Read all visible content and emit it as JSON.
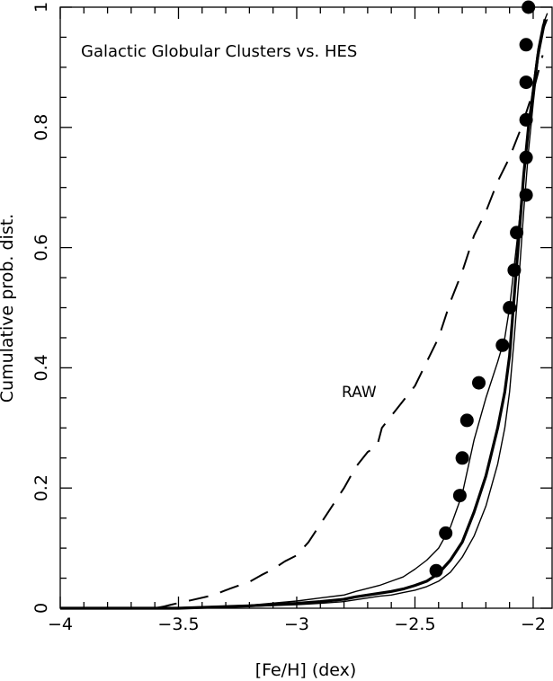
{
  "chart_data": {
    "type": "line",
    "title": "Galactic Globular Clusters vs. HES",
    "xlabel": "[Fe/H] (dex)",
    "ylabel": "Cumulative prob. dist.",
    "xlim": [
      -4.0,
      -1.92
    ],
    "ylim": [
      0.0,
      1.0
    ],
    "x_ticks": [
      -4,
      -3.5,
      -3,
      -2.5,
      -2
    ],
    "x_tick_labels": [
      "−4",
      "−3.5",
      "−3",
      "−2.5",
      "−2"
    ],
    "y_ticks": [
      0,
      0.2,
      0.4,
      0.6,
      0.8,
      1
    ],
    "y_tick_labels": [
      "0",
      "0.2",
      "0.4",
      "0.6",
      "0.8",
      "1"
    ],
    "grid": false,
    "annotations": [
      {
        "text": "RAW",
        "x": -2.78,
        "y": 0.36
      }
    ],
    "series": [
      {
        "style": "dashed",
        "stroke": "#000000",
        "x": [
          -4.0,
          -3.8,
          -3.6,
          -3.56,
          -3.53,
          -3.45,
          -3.35,
          -3.3,
          -3.25,
          -3.2,
          -3.15,
          -3.1,
          -3.05,
          -3.0,
          -2.95,
          -2.9,
          -2.85,
          -2.8,
          -2.75,
          -2.7,
          -2.66,
          -2.64,
          -2.6,
          -2.55,
          -2.5,
          -2.45,
          -2.4,
          -2.35,
          -2.3,
          -2.25,
          -2.2,
          -2.15,
          -2.1,
          -2.05,
          -2.0,
          -1.96
        ],
        "y": [
          0.0,
          0.0,
          0.0,
          0.003,
          0.006,
          0.013,
          0.022,
          0.03,
          0.037,
          0.044,
          0.055,
          0.065,
          0.078,
          0.088,
          0.11,
          0.14,
          0.17,
          0.2,
          0.235,
          0.26,
          0.27,
          0.3,
          0.32,
          0.345,
          0.37,
          0.41,
          0.45,
          0.51,
          0.56,
          0.62,
          0.66,
          0.71,
          0.75,
          0.8,
          0.86,
          0.92
        ]
      },
      {
        "style": "thick",
        "stroke": "#000000",
        "x": [
          -4.0,
          -3.5,
          -3.2,
          -3.0,
          -2.9,
          -2.8,
          -2.75,
          -2.7,
          -2.65,
          -2.6,
          -2.55,
          -2.5,
          -2.45,
          -2.4,
          -2.35,
          -2.3,
          -2.25,
          -2.2,
          -2.15,
          -2.12,
          -2.1,
          -2.08,
          -2.06,
          -2.04,
          -2.02,
          -2.0,
          -1.98,
          -1.96,
          -1.95
        ],
        "y": [
          0.0,
          0.0,
          0.004,
          0.008,
          0.011,
          0.015,
          0.019,
          0.022,
          0.025,
          0.028,
          0.032,
          0.038,
          0.045,
          0.058,
          0.08,
          0.11,
          0.16,
          0.22,
          0.3,
          0.36,
          0.42,
          0.52,
          0.62,
          0.72,
          0.8,
          0.86,
          0.92,
          0.96,
          0.98
        ]
      },
      {
        "style": "thin",
        "stroke": "#000000",
        "x": [
          -4.0,
          -3.5,
          -3.2,
          -3.0,
          -2.9,
          -2.8,
          -2.75,
          -2.7,
          -2.65,
          -2.6,
          -2.55,
          -2.5,
          -2.45,
          -2.4,
          -2.35,
          -2.3,
          -2.25,
          -2.2,
          -2.15,
          -2.12,
          -2.1,
          -2.08,
          -2.06,
          -2.04,
          -2.02,
          -2.0,
          -1.98,
          -1.96,
          -1.94
        ],
        "y": [
          0.0,
          0.001,
          0.005,
          0.012,
          0.017,
          0.022,
          0.028,
          0.033,
          0.038,
          0.045,
          0.052,
          0.065,
          0.08,
          0.1,
          0.135,
          0.19,
          0.28,
          0.35,
          0.41,
          0.45,
          0.5,
          0.57,
          0.64,
          0.72,
          0.8,
          0.87,
          0.93,
          0.97,
          0.99
        ]
      },
      {
        "style": "thin",
        "stroke": "#000000",
        "x": [
          -4.0,
          -3.5,
          -3.2,
          -3.0,
          -2.9,
          -2.8,
          -2.75,
          -2.7,
          -2.65,
          -2.6,
          -2.55,
          -2.5,
          -2.45,
          -2.4,
          -2.35,
          -2.3,
          -2.25,
          -2.2,
          -2.15,
          -2.12,
          -2.1,
          -2.08,
          -2.06,
          -2.04,
          -2.02,
          -2.0,
          -1.98,
          -1.96,
          -1.94
        ],
        "y": [
          0.0,
          0.0,
          0.003,
          0.006,
          0.008,
          0.011,
          0.014,
          0.017,
          0.02,
          0.022,
          0.026,
          0.03,
          0.036,
          0.045,
          0.06,
          0.085,
          0.12,
          0.17,
          0.24,
          0.3,
          0.36,
          0.45,
          0.55,
          0.66,
          0.76,
          0.84,
          0.91,
          0.96,
          0.98
        ]
      }
    ],
    "points": {
      "marker": "filled-circle",
      "fill": "#000000",
      "x": [
        -2.41,
        -2.37,
        -2.31,
        -2.3,
        -2.28,
        -2.23,
        -2.13,
        -2.1,
        -2.08,
        -2.07,
        -2.03,
        -2.03,
        -2.03,
        -2.03,
        -2.03,
        -2.02
      ],
      "y": [
        0.0625,
        0.125,
        0.1875,
        0.25,
        0.3125,
        0.375,
        0.4375,
        0.5,
        0.5625,
        0.625,
        0.6875,
        0.75,
        0.8125,
        0.875,
        0.9375,
        1.0
      ]
    }
  }
}
